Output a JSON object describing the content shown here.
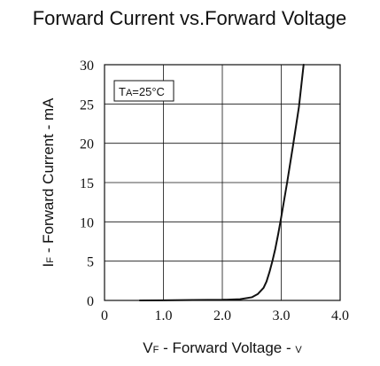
{
  "chart_data": {
    "type": "line",
    "title": "Forward Current vs.Forward Voltage",
    "xlabel": {
      "main": "V",
      "sub": "F",
      "rest": " - Forward Voltage - ",
      "unit": "V"
    },
    "ylabel": {
      "main": "I",
      "sub": "F",
      "rest": " - Forward Current - mA"
    },
    "xlim": [
      0,
      4.0
    ],
    "ylim": [
      0,
      30
    ],
    "x_ticks": [
      "0",
      "1.0",
      "2.0",
      "3.0",
      "4.0"
    ],
    "y_ticks": [
      "0",
      "5",
      "10",
      "15",
      "20",
      "25",
      "30"
    ],
    "grid": true,
    "annotation": {
      "main": "T",
      "sub": "A",
      "rest": "=25°C"
    },
    "series": [
      {
        "color": "#111111",
        "x": [
          0.6,
          1.0,
          1.5,
          2.0,
          2.3,
          2.5,
          2.6,
          2.7,
          2.75,
          2.8,
          2.85,
          2.9,
          2.95,
          3.0,
          3.1,
          3.2,
          3.3,
          3.38
        ],
        "y": [
          0.0,
          0.02,
          0.05,
          0.08,
          0.15,
          0.4,
          0.8,
          1.6,
          2.4,
          3.6,
          5.0,
          6.6,
          8.5,
          10.6,
          15.0,
          19.7,
          24.6,
          30.0
        ]
      }
    ]
  }
}
